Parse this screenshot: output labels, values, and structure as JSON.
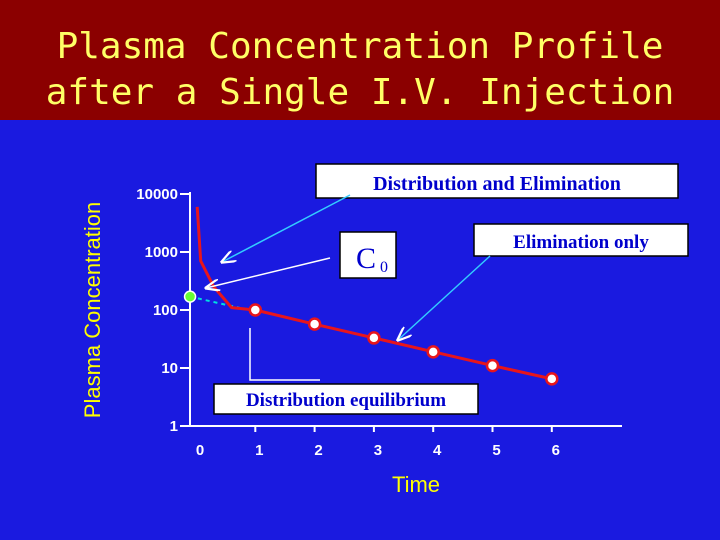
{
  "slide": {
    "title_line1": "Plasma Concentration Profile",
    "title_line2": "after a Single I.V. Injection",
    "colors": {
      "background": "#1a1ae0",
      "title_band": "#8b0000",
      "title_text": "#ffff66",
      "curve": "#e8151b",
      "extrapolation": "#00e0e0",
      "c0_marker": "#66ff33"
    }
  },
  "chart_data": {
    "type": "line",
    "title": "",
    "xlabel": "Time",
    "ylabel": "Plasma Concentration",
    "yscale": "log",
    "ylim": [
      1,
      10000
    ],
    "xlim": [
      0,
      6
    ],
    "y_ticks": [
      10000,
      1000,
      100,
      10,
      1
    ],
    "y_tick_labels": [
      "10000",
      "1000",
      "100",
      "10",
      "1"
    ],
    "x_ticks": [
      0,
      1,
      2,
      3,
      4,
      5,
      6
    ],
    "x_tick_labels": [
      "0",
      "1",
      "2",
      "3",
      "4",
      "5",
      "6"
    ],
    "series": [
      {
        "curve": [
          [
            0.02,
            6000
          ],
          [
            0.08,
            700
          ],
          [
            0.3,
            250
          ],
          [
            0.6,
            110
          ],
          [
            1,
            100
          ],
          [
            2,
            57
          ],
          [
            3,
            33
          ],
          [
            4,
            19
          ],
          [
            5,
            11
          ],
          [
            6,
            6.5
          ]
        ],
        "markers": [
          [
            1,
            100
          ],
          [
            2,
            57
          ],
          [
            3,
            33
          ],
          [
            4,
            19
          ],
          [
            5,
            11
          ],
          [
            6,
            6.5
          ]
        ]
      }
    ],
    "extrapolation": [
      [
        -0.1,
        170
      ],
      [
        0.8,
        105
      ]
    ],
    "c0_point": [
      -0.1,
      170
    ],
    "annotations": {
      "distribution_elimination": "Distribution and Elimination",
      "elimination_only": "Elimination only",
      "c0": "C",
      "c0_subscript": "0",
      "distribution_equilibrium": "Distribution  equilibrium"
    },
    "grid": false,
    "legend": "none"
  }
}
